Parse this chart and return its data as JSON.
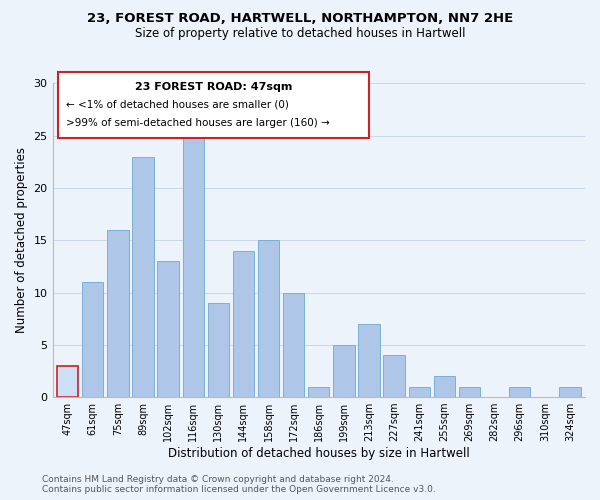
{
  "title": "23, FOREST ROAD, HARTWELL, NORTHAMPTON, NN7 2HE",
  "subtitle": "Size of property relative to detached houses in Hartwell",
  "xlabel": "Distribution of detached houses by size in Hartwell",
  "ylabel": "Number of detached properties",
  "bin_labels": [
    "47sqm",
    "61sqm",
    "75sqm",
    "89sqm",
    "102sqm",
    "116sqm",
    "130sqm",
    "144sqm",
    "158sqm",
    "172sqm",
    "186sqm",
    "199sqm",
    "213sqm",
    "227sqm",
    "241sqm",
    "255sqm",
    "269sqm",
    "282sqm",
    "296sqm",
    "310sqm",
    "324sqm"
  ],
  "bar_values": [
    3,
    11,
    16,
    23,
    13,
    25,
    9,
    14,
    15,
    10,
    1,
    5,
    7,
    4,
    1,
    2,
    1,
    0,
    1,
    0,
    1
  ],
  "bar_color": "#aec6e8",
  "bar_edge_color": "#7aafd4",
  "highlight_index": 0,
  "highlight_color": "#cce0f5",
  "highlight_edge_color": "#cc2222",
  "ylim": [
    0,
    30
  ],
  "yticks": [
    0,
    5,
    10,
    15,
    20,
    25,
    30
  ],
  "annotation_title": "23 FOREST ROAD: 47sqm",
  "annotation_line1": "← <1% of detached houses are smaller (0)",
  "annotation_line2": ">99% of semi-detached houses are larger (160) →",
  "annotation_box_color": "#ffffff",
  "annotation_box_edge": "#cc2222",
  "footer_line1": "Contains HM Land Registry data © Crown copyright and database right 2024.",
  "footer_line2": "Contains public sector information licensed under the Open Government Licence v3.0.",
  "grid_color": "#c8d8ea",
  "background_color": "#edf3fb"
}
